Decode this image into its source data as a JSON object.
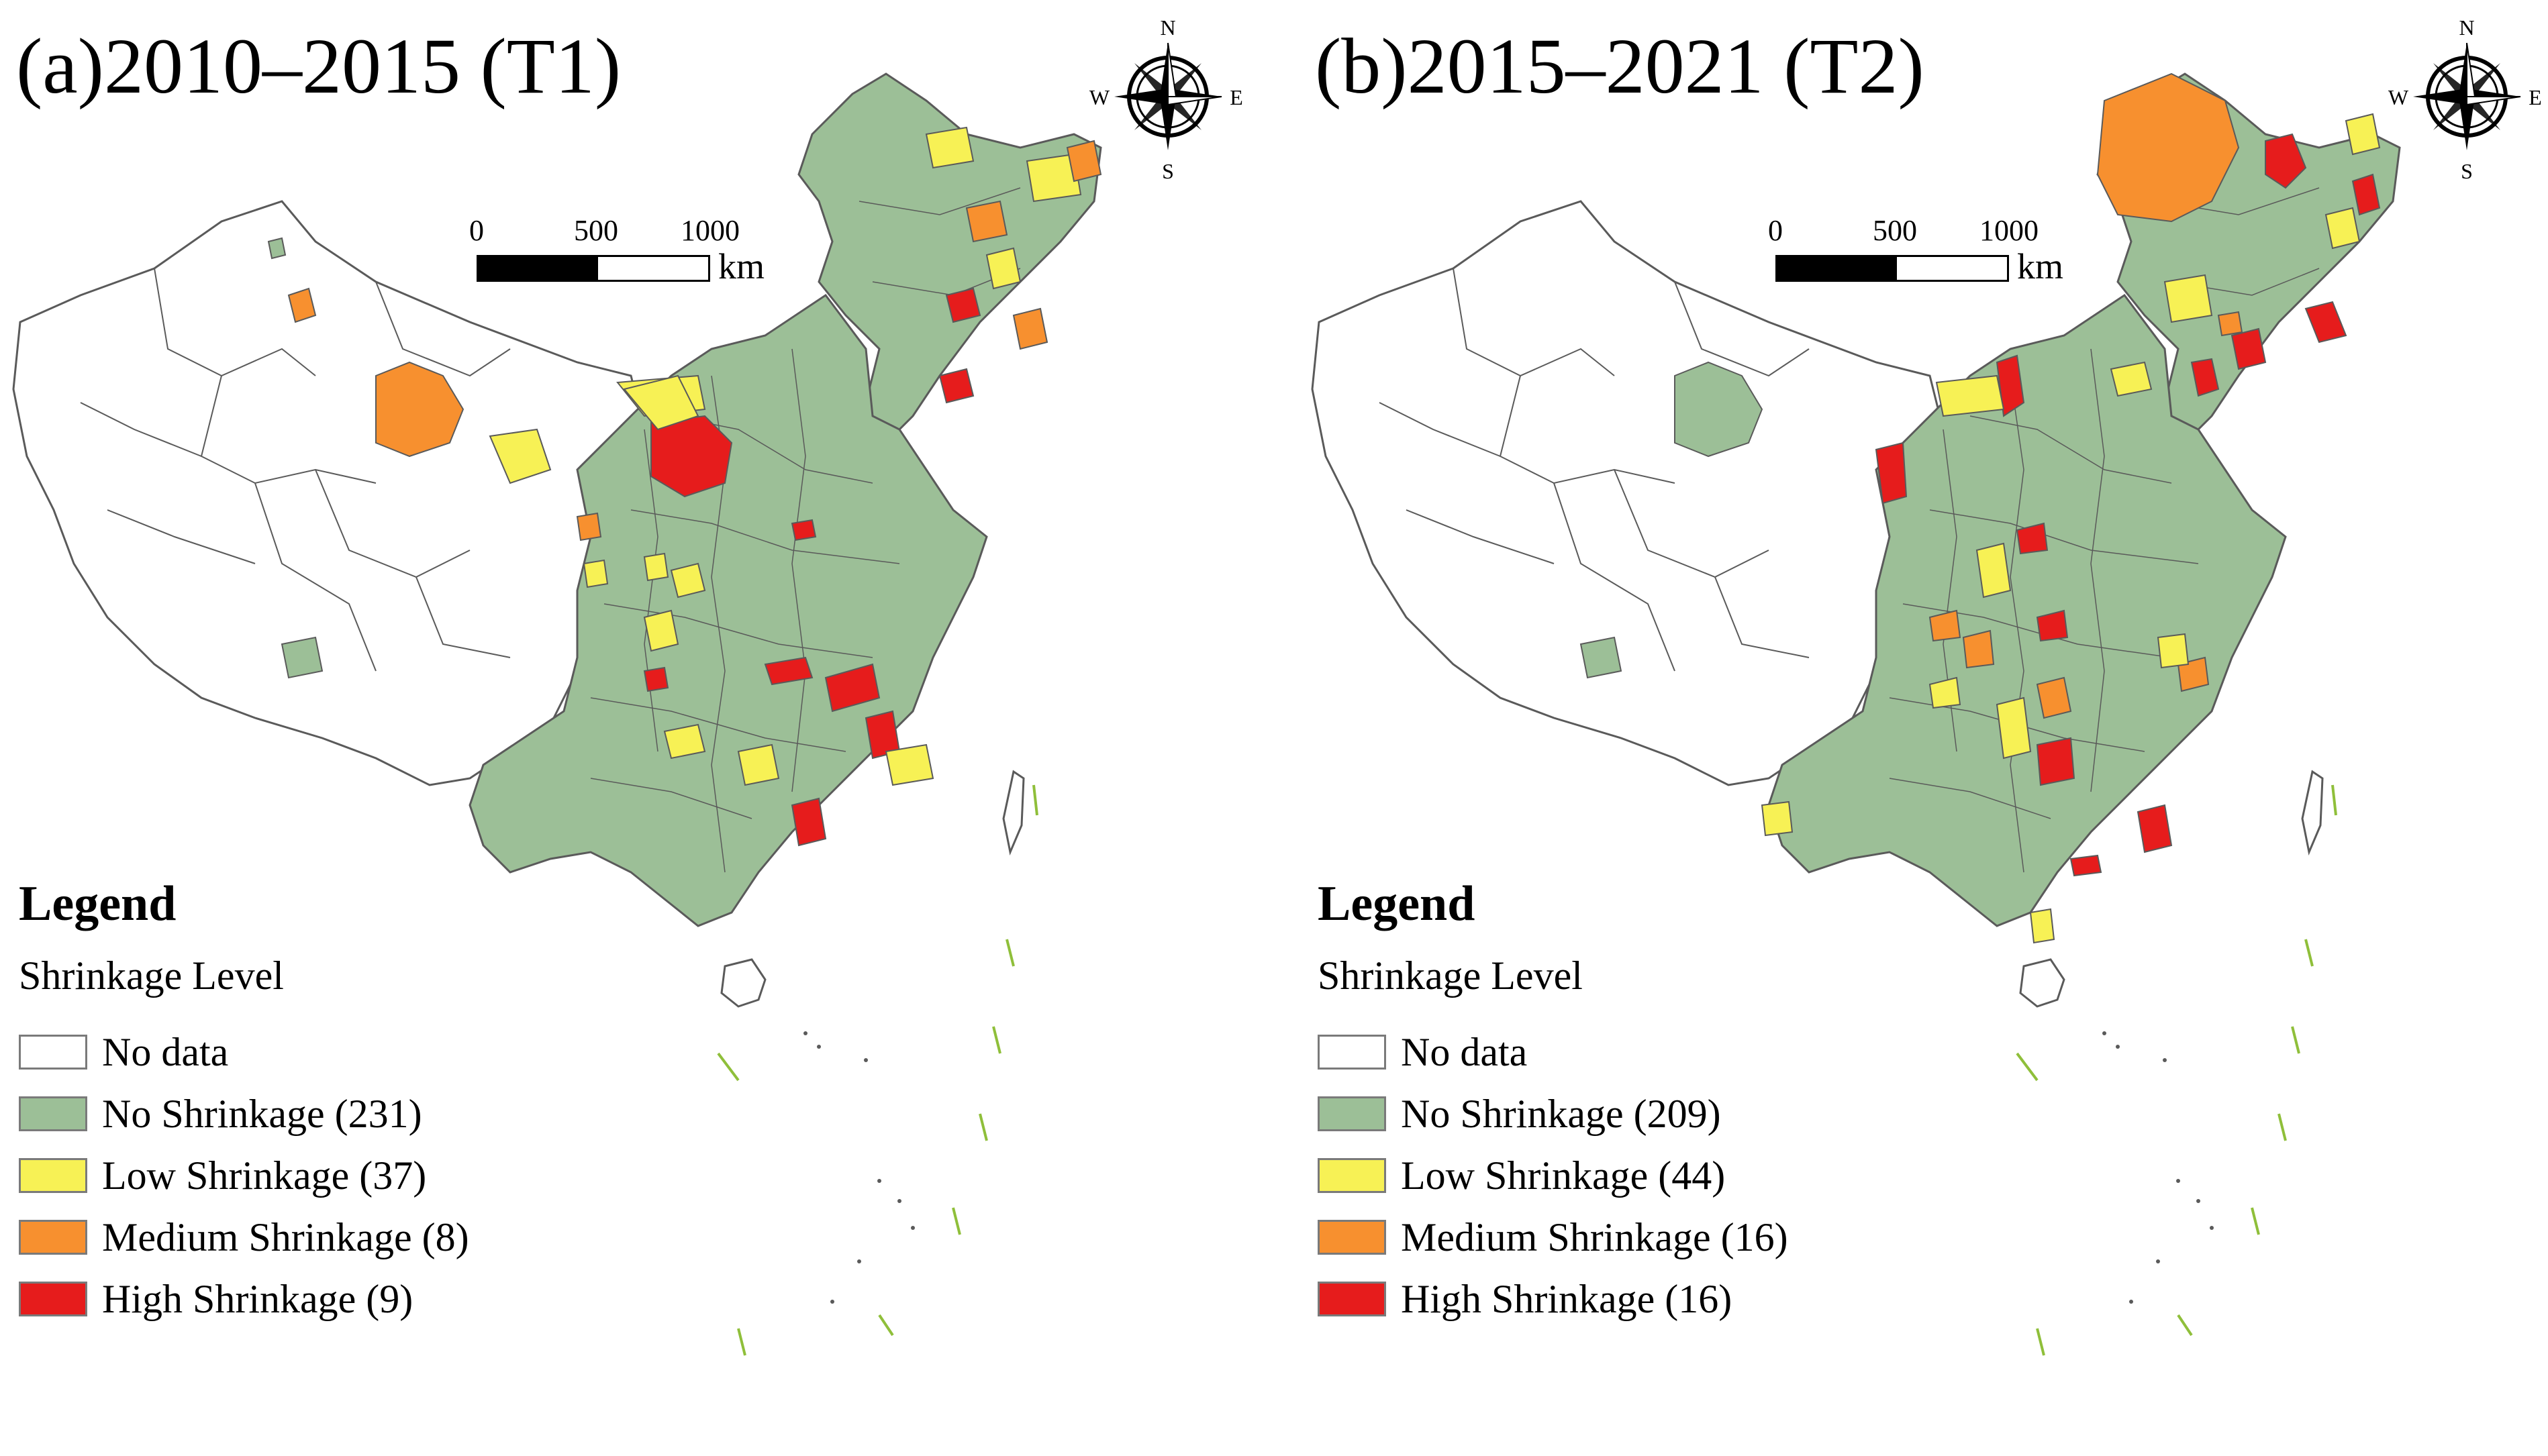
{
  "colors": {
    "no_data": "#ffffff",
    "no_shrinkage": "#9cbf97",
    "low": "#f7f155",
    "medium": "#f7902f",
    "high": "#e61c1c",
    "boundary": "#5a5a5a",
    "dash_line": "#8fbf3a"
  },
  "panels": [
    {
      "title": "(a)2010–2015 (T1)",
      "scale": {
        "ticks": [
          "0",
          "500",
          "1000"
        ],
        "unit": "km"
      },
      "compass": {
        "n": "N",
        "s": "S",
        "e": "E",
        "w": "W"
      },
      "legend": {
        "title": "Legend",
        "subtitle": "Shrinkage Level",
        "items": [
          {
            "label": "No data",
            "color": "#ffffff"
          },
          {
            "label": "No Shrinkage (231)",
            "color": "#9cbf97"
          },
          {
            "label": "Low Shrinkage (37)",
            "color": "#f7f155"
          },
          {
            "label": "Medium Shrinkage (8)",
            "color": "#f7902f"
          },
          {
            "label": "High Shrinkage (9)",
            "color": "#e61c1c"
          }
        ]
      }
    },
    {
      "title": "(b)2015–2021 (T2)",
      "scale": {
        "ticks": [
          "0",
          "500",
          "1000"
        ],
        "unit": "km"
      },
      "compass": {
        "n": "N",
        "s": "S",
        "e": "E",
        "w": "W"
      },
      "legend": {
        "title": "Legend",
        "subtitle": "Shrinkage Level",
        "items": [
          {
            "label": "No data",
            "color": "#ffffff"
          },
          {
            "label": "No Shrinkage (209)",
            "color": "#9cbf97"
          },
          {
            "label": "Low Shrinkage (44)",
            "color": "#f7f155"
          },
          {
            "label": "Medium Shrinkage (16)",
            "color": "#f7902f"
          },
          {
            "label": "High Shrinkage (16)",
            "color": "#e61c1c"
          }
        ]
      }
    }
  ]
}
